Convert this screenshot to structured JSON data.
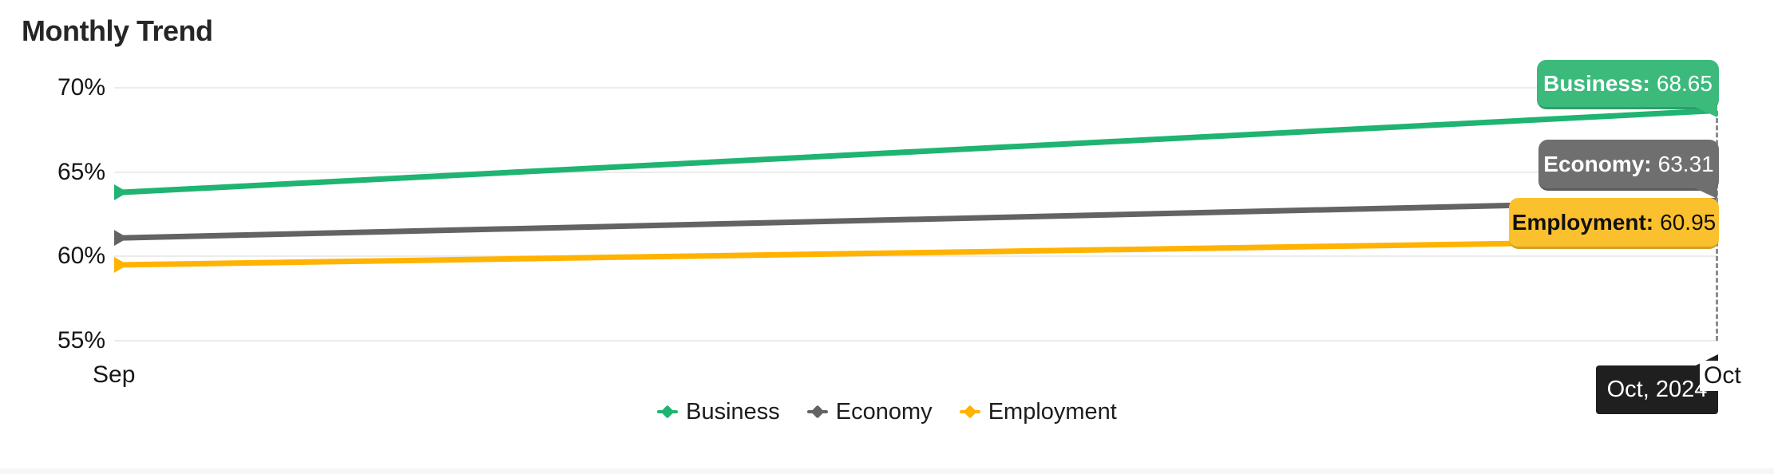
{
  "title": "Monthly Trend",
  "colors": {
    "business_line": "#1FB471",
    "business_tooltip": "#3CBA7C",
    "economy_line": "#636363",
    "economy_tooltip": "#6F6F6F",
    "employment_line": "#FFB300",
    "employment_tooltip": "#FBC02D",
    "axis_tooltip": "#1F1F1F",
    "grid_line": "#ECECEC",
    "cursor_line": "#8C8C8C",
    "text_primary": "#1A1A1A"
  },
  "chart_data": {
    "type": "line",
    "title": "Monthly Trend",
    "x": [
      "Sep",
      "Oct"
    ],
    "xlabel": "",
    "ylabel": "",
    "ylim": [
      55,
      70
    ],
    "y_tick_labels": [
      "70%",
      "65%",
      "60%",
      "55%"
    ],
    "y_tick_values": [
      70,
      65,
      60,
      55
    ],
    "grid": "horizontal",
    "legend_position": "bottom",
    "series": [
      {
        "name": "Business",
        "color_key": "business",
        "values": [
          63.8,
          68.65
        ]
      },
      {
        "name": "Economy",
        "color_key": "economy",
        "values": [
          61.1,
          63.31
        ]
      },
      {
        "name": "Employment",
        "color_key": "employment",
        "values": [
          59.5,
          60.95
        ]
      }
    ]
  },
  "tooltips": {
    "business": {
      "label": "Business:",
      "value": "68.65"
    },
    "economy": {
      "label": "Economy:",
      "value": "63.31"
    },
    "employment": {
      "label": "Employment:",
      "value": "60.95"
    },
    "axis": {
      "text": "Oct, 2024"
    }
  }
}
